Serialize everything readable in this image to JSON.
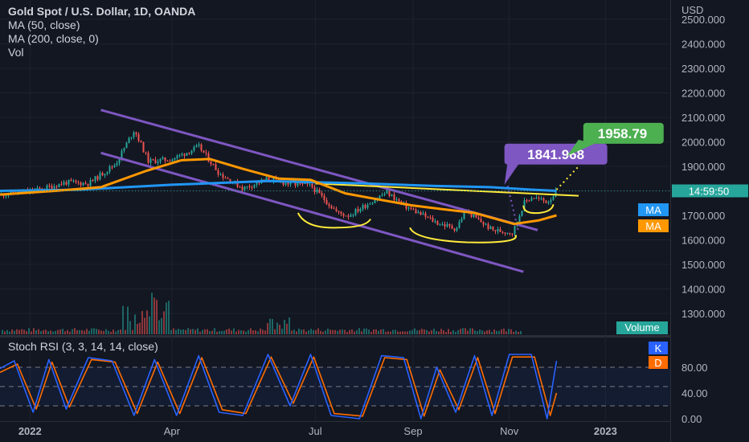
{
  "legend": {
    "title": "Gold Spot / U.S. Dollar, 1D, OANDA",
    "ma50": "MA (50, close)",
    "ma200": "MA (200, close, 0)",
    "vol": "Vol"
  },
  "rsi_legend": "Stoch RSI (3, 3, 14, 14, close)",
  "currency": "USD",
  "price_tag": "14:59:50",
  "ma_tags": [
    "MA",
    "MA"
  ],
  "volume_tag": "Volume",
  "rsi_tags": [
    "K",
    "D"
  ],
  "callouts": {
    "target1": "1841.968",
    "target2": "1958.79"
  },
  "colors": {
    "background": "#131722",
    "up": "#26a69a",
    "down": "#ef5350",
    "ma50": "#ff9800",
    "ma200": "#2196f3",
    "channel": "#7e57c2",
    "pattern": "#ffeb3b",
    "target2": "#4caf50",
    "stoch_k": "#2962ff",
    "stoch_d": "#ff6d00"
  },
  "chart_data": [
    {
      "type": "candlestick",
      "title": "Gold Spot / U.S. Dollar, 1D, OANDA",
      "x_tick_labels": [
        "2022",
        "Apr",
        "Jul",
        "Sep",
        "Nov",
        "2023"
      ],
      "y_tick_labels": [
        "2500.000",
        "2400.000",
        "2300.000",
        "2200.000",
        "2100.000",
        "2000.000",
        "1900.000",
        "1800.000",
        "1700.000",
        "1600.000",
        "1500.000",
        "1400.000",
        "1300.000"
      ],
      "ylim": [
        1270,
        2540
      ],
      "y_unit": "USD",
      "price_path": [
        [
          "2021-12-13",
          1785
        ],
        [
          "2022-01-03",
          1800
        ],
        [
          "2022-01-24",
          1835
        ],
        [
          "2022-02-07",
          1830
        ],
        [
          "2022-02-24",
          1910
        ],
        [
          "2022-03-08",
          2050
        ],
        [
          "2022-03-17",
          1920
        ],
        [
          "2022-04-01",
          1930
        ],
        [
          "2022-04-18",
          1980
        ],
        [
          "2022-05-01",
          1870
        ],
        [
          "2022-05-16",
          1810
        ],
        [
          "2022-06-01",
          1850
        ],
        [
          "2022-06-13",
          1830
        ],
        [
          "2022-06-28",
          1820
        ],
        [
          "2022-07-15",
          1710
        ],
        [
          "2022-07-22",
          1700
        ],
        [
          "2022-08-15",
          1795
        ],
        [
          "2022-08-26",
          1740
        ],
        [
          "2022-09-16",
          1670
        ],
        [
          "2022-09-28",
          1645
        ],
        [
          "2022-10-04",
          1720
        ],
        [
          "2022-10-21",
          1640
        ],
        [
          "2022-11-03",
          1630
        ],
        [
          "2022-11-10",
          1750
        ],
        [
          "2022-11-15",
          1775
        ],
        [
          "2022-11-25",
          1755
        ],
        [
          "2022-12-01",
          1800
        ]
      ],
      "series": [
        {
          "name": "MA (50, close)",
          "points": [
            [
              "2021-12-13",
              1785
            ],
            [
              "2022-01-17",
              1800
            ],
            [
              "2022-02-15",
              1815
            ],
            [
              "2022-03-15",
              1880
            ],
            [
              "2022-04-07",
              1925
            ],
            [
              "2022-04-25",
              1930
            ],
            [
              "2022-05-16",
              1890
            ],
            [
              "2022-06-08",
              1850
            ],
            [
              "2022-06-28",
              1845
            ],
            [
              "2022-07-20",
              1790
            ],
            [
              "2022-08-10",
              1765
            ],
            [
              "2022-09-01",
              1740
            ],
            [
              "2022-09-20",
              1725
            ],
            [
              "2022-10-10",
              1710
            ],
            [
              "2022-11-04",
              1665
            ],
            [
              "2022-11-20",
              1680
            ],
            [
              "2022-12-01",
              1700
            ]
          ]
        },
        {
          "name": "MA (200, close, 0)",
          "points": [
            [
              "2021-12-13",
              1800
            ],
            [
              "2022-02-01",
              1805
            ],
            [
              "2022-04-01",
              1825
            ],
            [
              "2022-06-01",
              1840
            ],
            [
              "2022-08-01",
              1830
            ],
            [
              "2022-09-15",
              1820
            ],
            [
              "2022-10-20",
              1815
            ],
            [
              "2022-11-15",
              1805
            ],
            [
              "2022-12-01",
              1800
            ]
          ]
        }
      ],
      "annotations": [
        {
          "kind": "channel-line",
          "from": [
            "2022-02-15",
            2130
          ],
          "to": [
            "2022-11-19",
            1640
          ]
        },
        {
          "kind": "channel-line",
          "from": [
            "2022-02-15",
            1955
          ],
          "to": [
            "2022-11-10",
            1470
          ]
        },
        {
          "kind": "neckline",
          "from": [
            "2022-07-01",
            1830
          ],
          "to": [
            "2022-12-15",
            1780
          ]
        },
        {
          "kind": "projection",
          "label": "1841.968",
          "from": [
            "2022-10-31",
            1820
          ],
          "to": [
            "2022-11-07",
            1630
          ]
        },
        {
          "kind": "projection",
          "label": "1958.79",
          "from": [
            "2022-12-01",
            1805
          ],
          "to": [
            "2022-12-15",
            1900
          ]
        }
      ],
      "last_price_label": "14:59:50"
    },
    {
      "type": "line",
      "title": "Stoch RSI (3, 3, 14, 14, close)",
      "y_tick_labels": [
        "80.00",
        "40.00",
        "0.00"
      ],
      "ylim": [
        0,
        100
      ],
      "levels": [
        80,
        50,
        20
      ],
      "series": [
        {
          "name": "K",
          "points": [
            [
              "2021-12-13",
              78
            ],
            [
              "2021-12-22",
              90
            ],
            [
              "2022-01-03",
              10
            ],
            [
              "2022-01-13",
              92
            ],
            [
              "2022-01-24",
              15
            ],
            [
              "2022-02-07",
              95
            ],
            [
              "2022-02-22",
              90
            ],
            [
              "2022-03-08",
              5
            ],
            [
              "2022-03-21",
              92
            ],
            [
              "2022-04-04",
              5
            ],
            [
              "2022-04-18",
              98
            ],
            [
              "2022-05-01",
              10
            ],
            [
              "2022-05-16",
              5
            ],
            [
              "2022-06-01",
              100
            ],
            [
              "2022-06-15",
              20
            ],
            [
              "2022-06-28",
              100
            ],
            [
              "2022-07-11",
              5
            ],
            [
              "2022-07-29",
              0
            ],
            [
              "2022-08-12",
              98
            ],
            [
              "2022-08-26",
              95
            ],
            [
              "2022-09-06",
              0
            ],
            [
              "2022-09-16",
              80
            ],
            [
              "2022-09-28",
              10
            ],
            [
              "2022-10-10",
              98
            ],
            [
              "2022-10-21",
              5
            ],
            [
              "2022-11-01",
              100
            ],
            [
              "2022-11-15",
              100
            ],
            [
              "2022-11-25",
              0
            ],
            [
              "2022-12-01",
              90
            ]
          ]
        },
        {
          "name": "D",
          "points": [
            [
              "2021-12-13",
              72
            ],
            [
              "2021-12-24",
              85
            ],
            [
              "2022-01-05",
              15
            ],
            [
              "2022-01-15",
              88
            ],
            [
              "2022-01-26",
              18
            ],
            [
              "2022-02-09",
              92
            ],
            [
              "2022-02-24",
              88
            ],
            [
              "2022-03-10",
              8
            ],
            [
              "2022-03-23",
              88
            ],
            [
              "2022-04-06",
              8
            ],
            [
              "2022-04-20",
              95
            ],
            [
              "2022-05-03",
              14
            ],
            [
              "2022-05-18",
              8
            ],
            [
              "2022-06-03",
              96
            ],
            [
              "2022-06-17",
              24
            ],
            [
              "2022-06-30",
              96
            ],
            [
              "2022-07-13",
              8
            ],
            [
              "2022-07-31",
              4
            ],
            [
              "2022-08-14",
              95
            ],
            [
              "2022-08-28",
              92
            ],
            [
              "2022-09-08",
              4
            ],
            [
              "2022-09-18",
              76
            ],
            [
              "2022-09-30",
              14
            ],
            [
              "2022-10-12",
              95
            ],
            [
              "2022-10-23",
              8
            ],
            [
              "2022-11-03",
              96
            ],
            [
              "2022-11-17",
              96
            ],
            [
              "2022-11-27",
              5
            ],
            [
              "2022-12-01",
              40
            ]
          ]
        }
      ]
    }
  ]
}
